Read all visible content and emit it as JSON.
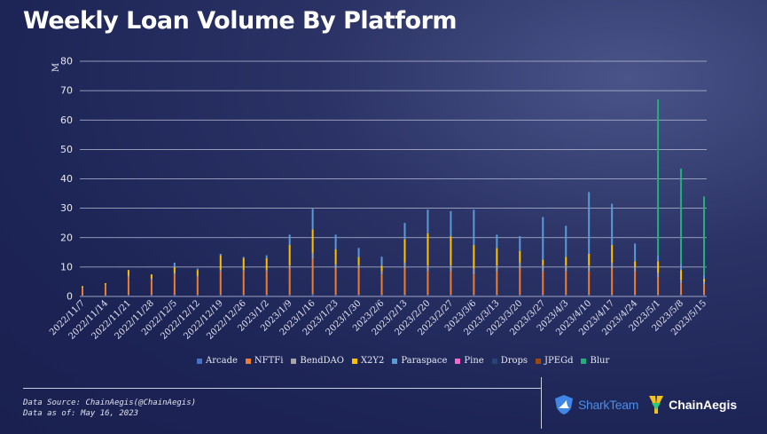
{
  "title": "Weekly Loan Volume By Platform",
  "footer": {
    "source_line": "Data Source: ChainAegis(@ChainAegis)",
    "date_line": "Data as of: May 16, 2023",
    "logo_sharkteam": "SharkTeam",
    "logo_chainaegis": "ChainAegis"
  },
  "colors": {
    "Arcade": "#4472c4",
    "NFTFi": "#ed7d31",
    "BendDAO": "#a5a5a5",
    "X2Y2": "#ffc000",
    "Paraspace": "#5b9bd5",
    "Pine": "#ff66cc",
    "Drops": "#264478",
    "JPEGd": "#9e480e",
    "Blur": "#21b07a"
  },
  "chart_data": {
    "type": "bar",
    "stacked": true,
    "title": "Weekly Loan Volume By Platform",
    "ylabel": "M",
    "xlabel": "",
    "ylim": [
      0,
      80
    ],
    "yticks": [
      0,
      10,
      20,
      30,
      40,
      50,
      60,
      70,
      80
    ],
    "grid": true,
    "legend_position": "bottom",
    "categories": [
      "2022/11/7",
      "2022/11/14",
      "2022/11/21",
      "2022/11/28",
      "2022/12/5",
      "2022/12/12",
      "2022/12/19",
      "2022/12/26",
      "2023/1/2",
      "2023/1/9",
      "2023/1/16",
      "2023/1/23",
      "2023/1/30",
      "2023/2/6",
      "2023/2/13",
      "2023/2/20",
      "2023/2/27",
      "2023/3/6",
      "2023/3/13",
      "2023/3/20",
      "2023/3/27",
      "2023/4/3",
      "2023/4/10",
      "2023/4/17",
      "2023/4/24",
      "2023/5/1",
      "2023/5/8",
      "2023/5/15"
    ],
    "series": [
      {
        "name": "Arcade",
        "values": [
          0.3,
          0.3,
          0.5,
          0.5,
          0.5,
          0.5,
          0.5,
          0.5,
          0.5,
          0.5,
          0.8,
          0.5,
          0.5,
          0.5,
          0.5,
          0.5,
          0.5,
          0.5,
          0.5,
          0.5,
          0.5,
          0.5,
          0.5,
          0.5,
          0.5,
          0.5,
          0.5,
          0.5
        ]
      },
      {
        "name": "NFTFi",
        "values": [
          2.5,
          3.5,
          6.0,
          5.0,
          7.0,
          6.0,
          8.0,
          8.0,
          8.0,
          9.0,
          12.0,
          9.0,
          9.0,
          7.0,
          9.0,
          8.0,
          8.0,
          7.0,
          8.0,
          9.0,
          8.0,
          8.0,
          8.0,
          9.0,
          8.0,
          6.0,
          4.0,
          3.5
        ]
      },
      {
        "name": "BendDAO",
        "values": [
          0.2,
          0.2,
          0.5,
          0.5,
          0.5,
          0.5,
          0.5,
          0.5,
          0.5,
          1.0,
          2.0,
          1.5,
          1.0,
          1.0,
          2.0,
          2.0,
          2.0,
          2.0,
          2.0,
          2.0,
          2.0,
          2.0,
          2.0,
          2.0,
          1.5,
          1.5,
          1.0,
          1.0
        ]
      },
      {
        "name": "X2Y2",
        "values": [
          0.5,
          0.5,
          2.0,
          1.5,
          2.0,
          2.0,
          5.0,
          4.0,
          4.0,
          7.0,
          8.0,
          5.0,
          3.0,
          2.0,
          8.0,
          11.0,
          10.0,
          8.0,
          6.0,
          4.0,
          2.0,
          3.0,
          4.0,
          6.0,
          2.0,
          4.0,
          3.5,
          1.0
        ]
      },
      {
        "name": "Paraspace",
        "values": [
          0,
          0,
          0,
          0,
          1.5,
          0.5,
          0.5,
          0.5,
          1.0,
          3.5,
          7.0,
          5.0,
          3.0,
          3.0,
          5.5,
          8.0,
          8.5,
          12.0,
          4.5,
          5.0,
          14.5,
          10.5,
          21.0,
          14.0,
          6.0,
          2.0,
          2.0,
          1.5
        ]
      },
      {
        "name": "Pine",
        "values": [
          0,
          0,
          0,
          0,
          0,
          0,
          0,
          0,
          0,
          0,
          0,
          0,
          0,
          0,
          0,
          0,
          0,
          0,
          0,
          0,
          0,
          0,
          0,
          0,
          0,
          0,
          0,
          0
        ]
      },
      {
        "name": "Drops",
        "values": [
          0,
          0,
          0,
          0,
          0,
          0,
          0,
          0,
          0,
          0,
          0,
          0,
          0,
          0,
          0,
          0,
          0,
          0,
          0,
          0,
          0,
          0,
          0,
          0,
          0,
          0,
          0,
          0
        ]
      },
      {
        "name": "JPEGd",
        "values": [
          0,
          0,
          0,
          0,
          0,
          0,
          0,
          0,
          0,
          0,
          0,
          0,
          0,
          0,
          0,
          0,
          0,
          0,
          0,
          0,
          0,
          0,
          0,
          0,
          0,
          0,
          0,
          0
        ]
      },
      {
        "name": "Blur",
        "values": [
          0,
          0,
          0,
          0,
          0,
          0,
          0,
          0,
          0,
          0,
          0,
          0,
          0,
          0,
          0,
          0,
          0,
          0,
          0,
          0,
          0,
          0,
          0,
          0,
          0,
          53.0,
          32.5,
          26.5
        ]
      }
    ]
  }
}
